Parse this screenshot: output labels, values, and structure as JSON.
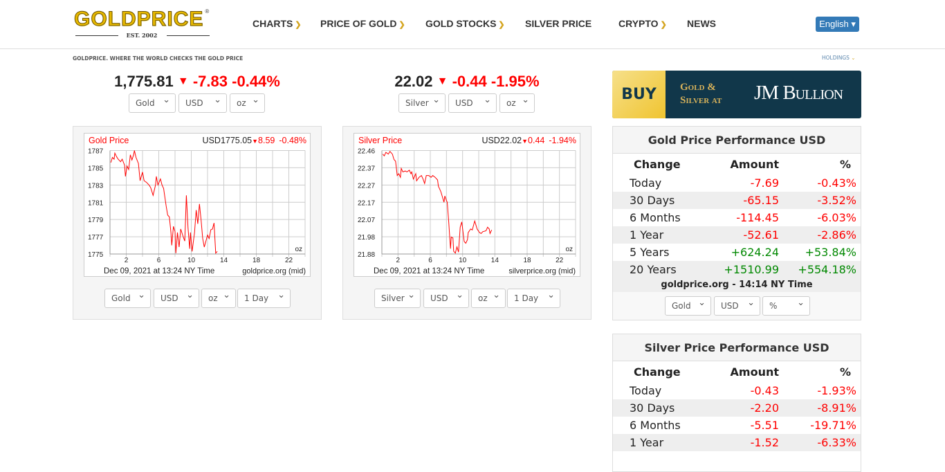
{
  "header": {
    "logo_text": "GOLDPRICE",
    "logo_est": "EST. 2002",
    "nav": [
      {
        "label": "CHARTS",
        "dropdown": true
      },
      {
        "label": "PRICE OF GOLD",
        "dropdown": true
      },
      {
        "label": "GOLD STOCKS",
        "dropdown": true
      },
      {
        "label": "SILVER PRICE",
        "dropdown": false
      },
      {
        "label": "CRYPTO",
        "dropdown": true
      },
      {
        "label": "NEWS",
        "dropdown": false
      }
    ],
    "language": "English ▾"
  },
  "tagline": "GOLDPRICE.  WHERE THE WORLD CHECKS THE GOLD PRICE",
  "holdings": "HOLDINGS",
  "spot": [
    {
      "price": "1,775.81",
      "change": "-7.83",
      "pct": "-0.44%",
      "selects": [
        "Gold",
        "USD",
        "oz"
      ]
    },
    {
      "price": "22.02",
      "change": "-0.44",
      "pct": "-1.95%",
      "selects": [
        "Silver",
        "USD",
        "oz"
      ]
    }
  ],
  "chart_selects": [
    [
      "Gold",
      "USD",
      "oz",
      "1 Day"
    ],
    [
      "Silver",
      "USD",
      "oz",
      "1 Day"
    ]
  ],
  "chart_data": [
    {
      "type": "line",
      "title": "Gold Price",
      "readout": "USD1775.05",
      "change": "8.59",
      "pct": "-0.48%",
      "unit": "oz",
      "date_label": "Dec 09, 2021 at 13:24 NY Time",
      "source": "goldprice.org (mid)",
      "xlim": [
        0,
        24
      ],
      "xticks": [
        2,
        6,
        10,
        14,
        18,
        22
      ],
      "ylim": [
        1775,
        1787
      ],
      "yticks": [
        "1787",
        "1785",
        "1783",
        "1781",
        "1779",
        "1777",
        "1775"
      ],
      "grid": true,
      "color": "#ff0000",
      "x": [
        0.1,
        0.3,
        0.5,
        0.6,
        0.8,
        1.0,
        1.3,
        1.5,
        1.8,
        1.9,
        2.1,
        2.3,
        2.5,
        2.7,
        2.9,
        3.0,
        3.2,
        3.5,
        3.7,
        4.0,
        4.2,
        4.5,
        4.8,
        5.0,
        5.3,
        5.6,
        5.7,
        5.9,
        6.2,
        6.4,
        6.6,
        6.9,
        7.1,
        7.3,
        7.5,
        7.6,
        7.8,
        8.0,
        8.1,
        8.3,
        8.5,
        8.7,
        9.0,
        9.2,
        9.4,
        9.6,
        9.8,
        9.9,
        10.1,
        10.4,
        10.6,
        10.8,
        11.0,
        11.2,
        11.4,
        11.6,
        11.8,
        12.0,
        12.2,
        12.4,
        12.6,
        12.8,
        13.0,
        13.2
      ],
      "y": [
        1785.6,
        1786.2,
        1786.0,
        1786.7,
        1786.3,
        1786.0,
        1785.7,
        1786.0,
        1785.3,
        1784.0,
        1785.2,
        1784.8,
        1786.5,
        1785.9,
        1786.5,
        1787.0,
        1786.2,
        1785.5,
        1783.5,
        1784.5,
        1783.5,
        1783.3,
        1783.0,
        1782.7,
        1781.8,
        1783.0,
        1784.0,
        1783.0,
        1783.7,
        1783.0,
        1782.6,
        1780.6,
        1779.5,
        1779.3,
        1777.5,
        1776.0,
        1778.2,
        1777.6,
        1775.1,
        1777.5,
        1775.8,
        1777.9,
        1777.0,
        1776.5,
        1781.8,
        1778.0,
        1775.6,
        1777.5,
        1775.3,
        1777.5,
        1780.1,
        1778.5,
        1780.8,
        1779.0,
        1776.8,
        1775.8,
        1776.5,
        1777.2,
        1776.8,
        1777.8,
        1777.9,
        1778.6,
        1775.1,
        1775.3
      ]
    },
    {
      "type": "line",
      "title": "Silver Price",
      "readout": "USD22.02",
      "change": "0.44",
      "pct": "-1.94%",
      "unit": "oz",
      "date_label": "Dec 09, 2021 at 13:24 NY Time",
      "source": "silverprice.org (mid)",
      "xlim": [
        0,
        24
      ],
      "xticks": [
        2,
        6,
        10,
        14,
        18,
        22
      ],
      "ylim": [
        21.88,
        22.46
      ],
      "yticks": [
        "22.46",
        "22.37",
        "22.27",
        "22.17",
        "22.07",
        "21.98",
        "21.88"
      ],
      "grid": true,
      "color": "#ff0000",
      "x": [
        0.1,
        0.3,
        0.5,
        0.8,
        1.0,
        1.3,
        1.5,
        1.7,
        1.9,
        2.1,
        2.3,
        2.4,
        2.6,
        2.9,
        3.1,
        3.4,
        3.6,
        3.7,
        3.9,
        4.1,
        4.2,
        4.3,
        4.6,
        4.9,
        5.1,
        5.3,
        5.5,
        5.8,
        6.1,
        6.3,
        6.6,
        6.9,
        7.0,
        7.3,
        7.5,
        7.7,
        7.8,
        8.0,
        8.1,
        8.3,
        8.5,
        8.6,
        8.8,
        8.9,
        9.1,
        9.3,
        9.5,
        9.7,
        9.9,
        10.2,
        10.4,
        10.6,
        10.7,
        11.0,
        11.2,
        11.5,
        11.8,
        12.1,
        12.3,
        12.5,
        12.9,
        13.1,
        13.3,
        13.4,
        13.6
      ],
      "y": [
        22.44,
        22.43,
        22.45,
        22.44,
        22.455,
        22.44,
        22.41,
        22.4,
        22.32,
        22.33,
        22.31,
        22.36,
        22.34,
        22.345,
        22.34,
        22.35,
        22.33,
        22.34,
        22.3,
        22.32,
        22.33,
        22.29,
        22.31,
        22.32,
        22.3,
        22.275,
        22.32,
        22.32,
        22.31,
        22.32,
        22.31,
        22.295,
        22.26,
        22.23,
        22.2,
        22.17,
        22.205,
        22.18,
        22.17,
        22.05,
        21.91,
        21.975,
        21.97,
        21.895,
        21.885,
        21.92,
        21.89,
        22.03,
        22.06,
        21.95,
        21.94,
        21.96,
        22.0,
        22.02,
        22.015,
        22.065,
        22.02,
        22.0,
        21.995,
        22.005,
        22.01,
        22.03,
        22.02,
        21.995,
        22.015
      ]
    }
  ],
  "performance": [
    {
      "title": "Gold Price Performance USD",
      "columns": [
        "Change",
        "Amount",
        "%"
      ],
      "rows": [
        [
          "Today",
          "-7.69",
          "-0.43%"
        ],
        [
          "30 Days",
          "-65.15",
          "-3.52%"
        ],
        [
          "6 Months",
          "-114.45",
          "-6.03%"
        ],
        [
          "1 Year",
          "-52.61",
          "-2.86%"
        ],
        [
          "5 Years",
          "+624.24",
          "+53.84%"
        ],
        [
          "20 Years",
          "+1510.99",
          "+554.18%"
        ]
      ],
      "footer": "goldprice.org - 14:14 NY Time",
      "selects": [
        "Gold",
        "USD",
        "%"
      ]
    },
    {
      "title": "Silver Price Performance USD",
      "columns": [
        "Change",
        "Amount",
        "%"
      ],
      "rows": [
        [
          "Today",
          "-0.43",
          "-1.93%"
        ],
        [
          "30 Days",
          "-2.20",
          "-8.91%"
        ],
        [
          "6 Months",
          "-5.51",
          "-19.71%"
        ],
        [
          "1 Year",
          "-1.52",
          "-6.33%"
        ]
      ]
    }
  ],
  "banner": {
    "buy": "BUY",
    "line1": "Gold &",
    "line2": "Silver at",
    "brand": "JM Bullion"
  },
  "colors": {
    "negative": "#ff0000",
    "positive": "#008000",
    "accent": "#d4a520",
    "button": "#337ab7",
    "banner_bg": "#11374a"
  }
}
